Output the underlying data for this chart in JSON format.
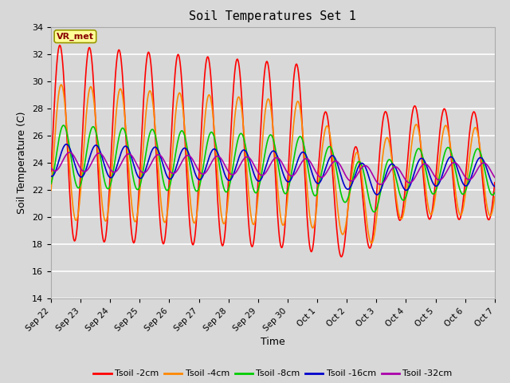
{
  "title": "Soil Temperatures Set 1",
  "xlabel": "Time",
  "ylabel": "Soil Temperature (C)",
  "ylim": [
    14,
    34
  ],
  "yticks": [
    14,
    16,
    18,
    20,
    22,
    24,
    26,
    28,
    30,
    32,
    34
  ],
  "bg_color": "#d8d8d8",
  "plot_bg_color": "#d8d8d8",
  "grid_color": "#ffffff",
  "annotation_text": "VR_met",
  "annotation_box_color": "#ffff99",
  "annotation_text_color": "#880000",
  "series_colors": [
    "#ff0000",
    "#ff8800",
    "#00cc00",
    "#0000cc",
    "#aa00aa"
  ],
  "series_labels": [
    "Tsoil -2cm",
    "Tsoil -4cm",
    "Tsoil -8cm",
    "Tsoil -16cm",
    "Tsoil -32cm"
  ],
  "tick_labels": [
    "Sep 22",
    "Sep 23",
    "Sep 24",
    "Sep 25",
    "Sep 26",
    "Sep 27",
    "Sep 28",
    "Sep 29",
    "Sep 30",
    "Oct 1",
    "Oct 2",
    "Oct 3",
    "Oct 4",
    "Oct 5",
    "Oct 6",
    "Oct 7"
  ]
}
